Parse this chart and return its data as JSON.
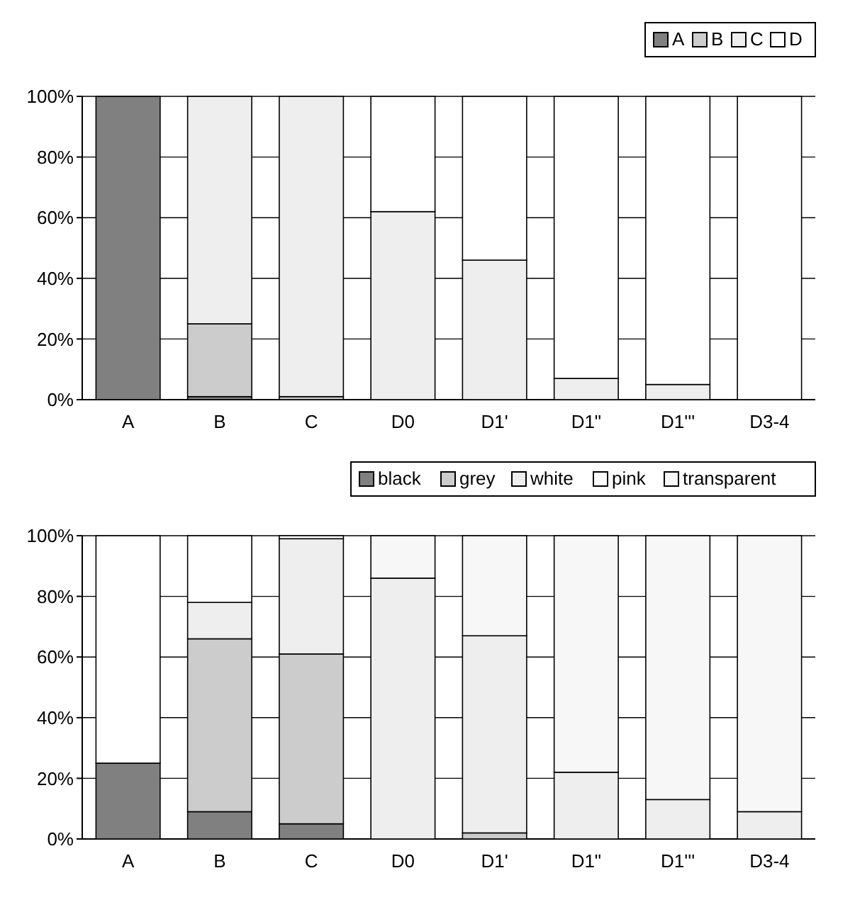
{
  "chart_data": [
    {
      "type": "bar",
      "stacked": true,
      "categories": [
        "A",
        "B",
        "C",
        "D0",
        "D1'",
        "D1\"",
        "D1'''",
        "D3-4"
      ],
      "series": [
        {
          "name": "A",
          "color": "#808080",
          "values": [
            100,
            1,
            0,
            0,
            0,
            0,
            0,
            0
          ]
        },
        {
          "name": "B",
          "color": "#cccccc",
          "values": [
            0,
            24,
            1,
            0,
            0,
            0,
            0,
            0
          ]
        },
        {
          "name": "C",
          "color": "#eeeeee",
          "values": [
            0,
            75,
            99,
            62,
            46,
            7,
            5,
            0
          ]
        },
        {
          "name": "D",
          "color": "#ffffff",
          "values": [
            0,
            0,
            0,
            38,
            54,
            93,
            95,
            100
          ]
        }
      ],
      "ylim": [
        0,
        100
      ],
      "yticks": [
        {
          "value": 0,
          "label": "0%"
        },
        {
          "value": 20,
          "label": "20%"
        },
        {
          "value": 40,
          "label": "40%"
        },
        {
          "value": 60,
          "label": "60%"
        },
        {
          "value": 80,
          "label": "80%"
        },
        {
          "value": 100,
          "label": "100%"
        }
      ],
      "grid": "y",
      "legend": "top right"
    },
    {
      "type": "bar",
      "stacked": true,
      "categories": [
        "A",
        "B",
        "C",
        "D0",
        "D1'",
        "D1\"",
        "D1'''",
        "D3-4"
      ],
      "series": [
        {
          "name": "black",
          "color": "#808080",
          "values": [
            25,
            9,
            5,
            0,
            0,
            0,
            0,
            0
          ]
        },
        {
          "name": "grey",
          "color": "#cccccc",
          "values": [
            0,
            57,
            56,
            0,
            2,
            0,
            0,
            0
          ]
        },
        {
          "name": "white",
          "color": "#eeeeee",
          "values": [
            0,
            12,
            38,
            86,
            65,
            22,
            13,
            9
          ]
        },
        {
          "name": "pink",
          "color": "#ffffff",
          "values": [
            75,
            22,
            1,
            0,
            0,
            0,
            0,
            0
          ]
        },
        {
          "name": "transparent",
          "color": "#f7f7f7",
          "values": [
            0,
            0,
            0,
            14,
            33,
            78,
            87,
            91
          ]
        }
      ],
      "ylim": [
        0,
        100
      ],
      "yticks": [
        {
          "value": 0,
          "label": "0%"
        },
        {
          "value": 20,
          "label": "20%"
        },
        {
          "value": 40,
          "label": "40%"
        },
        {
          "value": 60,
          "label": "60%"
        },
        {
          "value": 80,
          "label": "80%"
        },
        {
          "value": 100,
          "label": "100%"
        }
      ],
      "grid": "y",
      "legend": "top right"
    }
  ]
}
